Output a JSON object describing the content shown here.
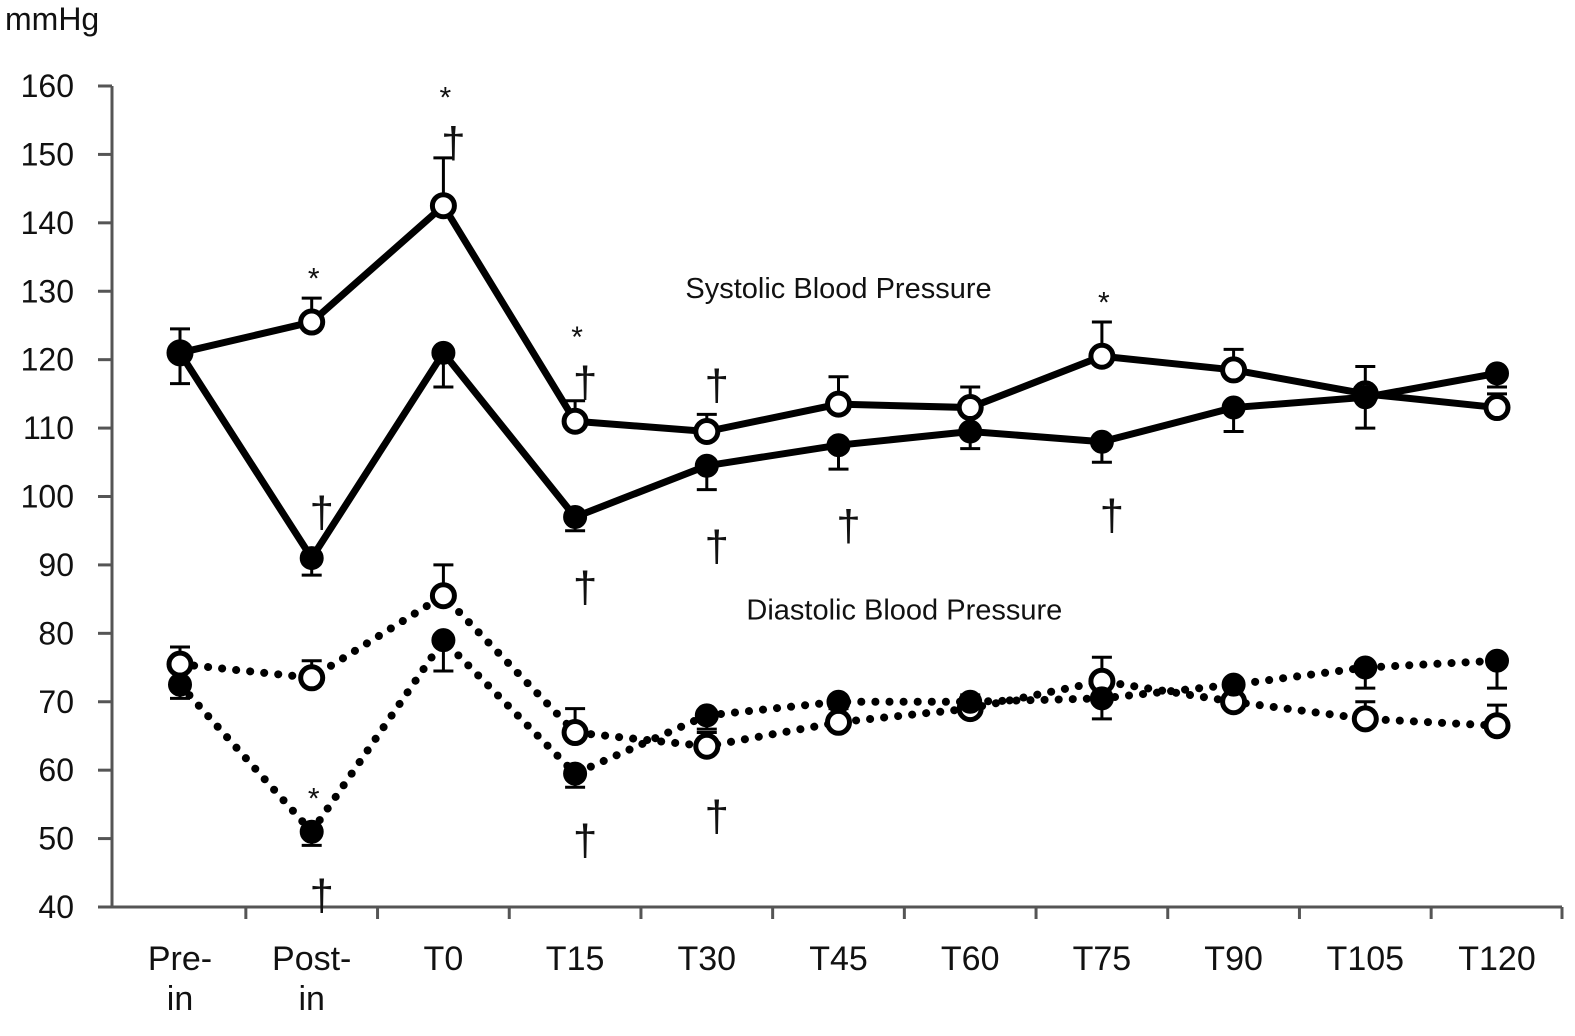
{
  "chart_data": {
    "type": "line",
    "ylabel": "mmHg",
    "ylim": [
      40,
      160
    ],
    "yticks": [
      40,
      50,
      60,
      70,
      80,
      90,
      100,
      110,
      120,
      130,
      140,
      150,
      160
    ],
    "categories": [
      "Pre-\nin",
      "Post-\nin",
      "T0",
      "T15",
      "T30",
      "T45",
      "T60",
      "T75",
      "T90",
      "T105",
      "T120"
    ],
    "grid": false,
    "labels": [
      {
        "text": "Systolic Blood Pressure",
        "category": 5,
        "y": 129
      },
      {
        "text": "Diastolic Blood Pressure",
        "category": 5.5,
        "y": 82
      }
    ],
    "series": [
      {
        "group": "systolic",
        "marker": "open",
        "line": "solid",
        "values": [
          121,
          125.5,
          142.5,
          111,
          109.5,
          113.5,
          113,
          120.5,
          118.5,
          115,
          113
        ],
        "error": [
          3.5,
          3.5,
          7,
          3,
          2.5,
          4,
          3,
          5,
          3,
          4,
          2
        ]
      },
      {
        "group": "systolic",
        "marker": "filled",
        "line": "solid",
        "values": [
          121,
          91,
          121,
          97,
          104.5,
          107.5,
          109.5,
          108,
          113,
          114.5,
          118
        ],
        "error": [
          4.5,
          2.5,
          5,
          2,
          3.5,
          3.5,
          2.5,
          3,
          3.5,
          4.5,
          2
        ]
      },
      {
        "group": "diastolic",
        "marker": "open",
        "line": "dotted",
        "values": [
          75.5,
          73.5,
          85.5,
          65.5,
          63.5,
          67,
          69,
          73,
          70,
          67.5,
          66.5
        ],
        "error": [
          2.5,
          2.5,
          4.5,
          3.5,
          2,
          2,
          2,
          3.5,
          2,
          2.5,
          3
        ]
      },
      {
        "group": "diastolic",
        "marker": "filled",
        "line": "dotted",
        "values": [
          72.5,
          51,
          79,
          59.5,
          68,
          70,
          70,
          70.5,
          72.5,
          75,
          76
        ],
        "error": [
          2,
          2,
          4.5,
          2,
          2,
          2,
          2,
          3,
          2,
          3,
          4
        ]
      }
    ],
    "annotations": [
      {
        "text": "*",
        "category": 1,
        "y": 133
      },
      {
        "text": "*",
        "category": 2,
        "y": 159.5
      },
      {
        "text": "†",
        "category": 2,
        "y": 152.5
      },
      {
        "text": "*",
        "category": 3,
        "y": 124.5
      },
      {
        "text": "†",
        "category": 3,
        "y": 117.5
      },
      {
        "text": "*",
        "category": 7,
        "y": 129.5
      },
      {
        "text": "†",
        "category": 4,
        "y": 117
      },
      {
        "text": "†",
        "category": 1,
        "y": 98.5
      },
      {
        "text": "†",
        "category": 3,
        "y": 87.5
      },
      {
        "text": "†",
        "category": 4,
        "y": 93.5
      },
      {
        "text": "†",
        "category": 5,
        "y": 96.5
      },
      {
        "text": "†",
        "category": 7,
        "y": 98
      },
      {
        "text": "*",
        "category": 1,
        "y": 57
      },
      {
        "text": "†",
        "category": 1,
        "y": 42.5
      },
      {
        "text": "†",
        "category": 3,
        "y": 50.5
      },
      {
        "text": "†",
        "category": 4,
        "y": 54
      }
    ]
  }
}
